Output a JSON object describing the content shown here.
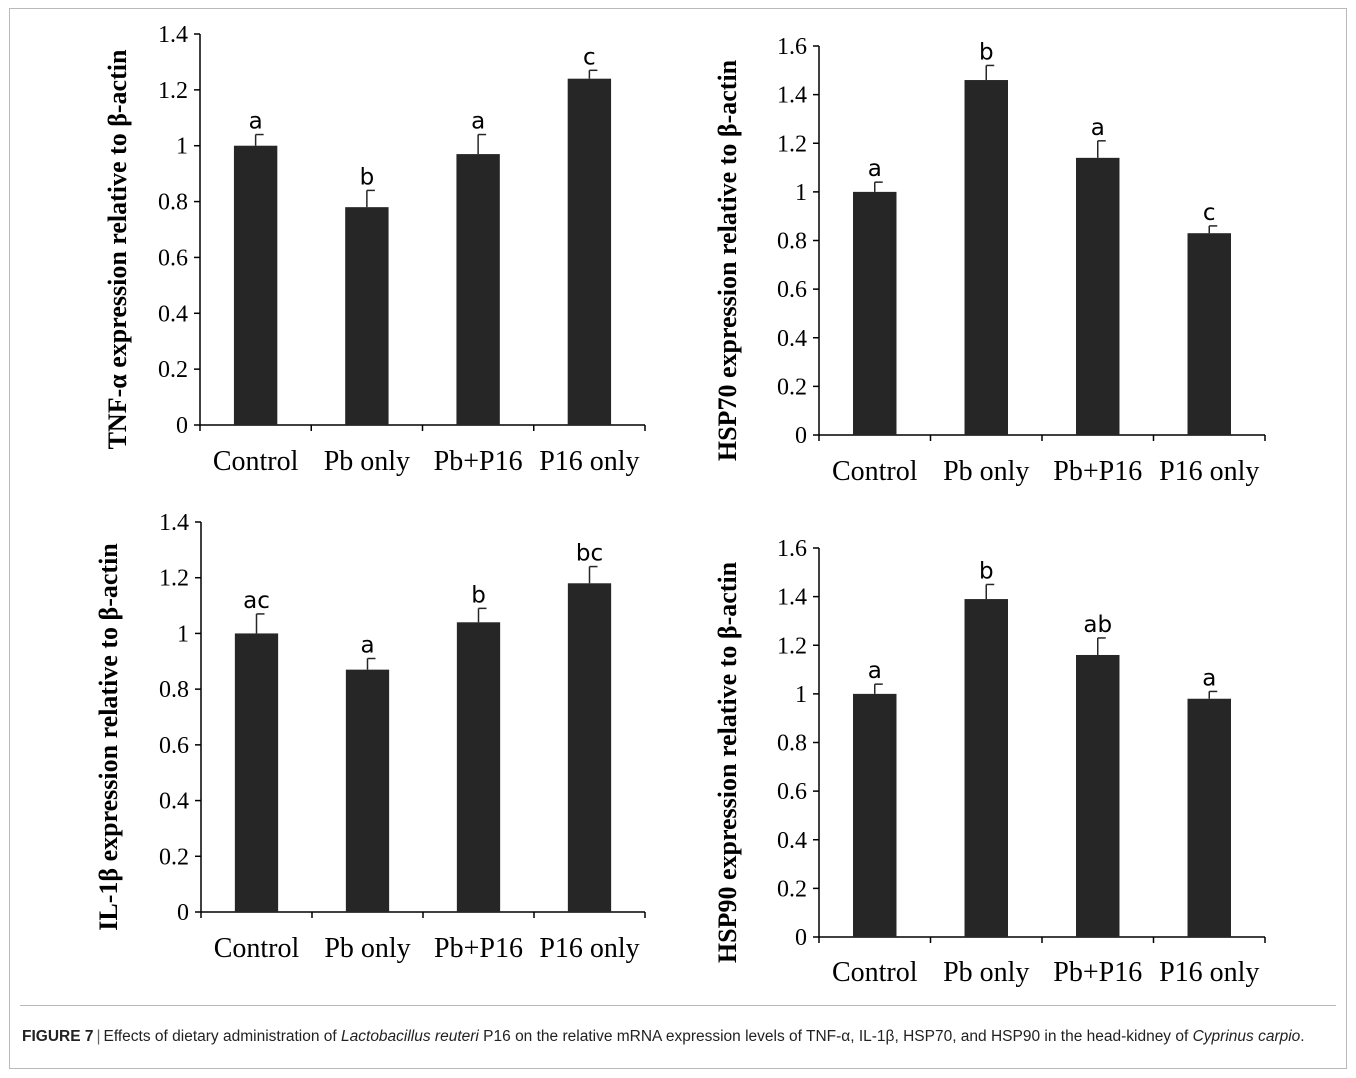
{
  "figure": {
    "caption": {
      "label": "FIGURE 7",
      "separator": "|",
      "text1": "Effects of dietary administration of ",
      "italic1": "Lactobacillus reuteri",
      "text2": " P16 on the relative mRNA expression levels of TNF-α, IL-1β, HSP70, and HSP90 in the head-kidney of ",
      "italic2": "Cyprinus carpio",
      "text3": "."
    }
  },
  "colors": {
    "bar": "#262626",
    "axis": "#000000",
    "frame": "#b9b9b9"
  },
  "chart_data": [
    {
      "type": "bar",
      "ylabel": "TNF-α expression relative to β-actin",
      "categories": [
        "Control",
        "Pb only",
        "Pb+P16",
        "P16 only"
      ],
      "values": [
        1.0,
        0.78,
        0.97,
        1.24
      ],
      "errors": [
        0.04,
        0.06,
        0.07,
        0.03
      ],
      "letters": [
        "a",
        "b",
        "a",
        "c"
      ],
      "ylim": [
        0,
        1.4
      ],
      "yticks": [
        0,
        0.2,
        0.4,
        0.6,
        0.8,
        1,
        1.2,
        1.4
      ],
      "yticklabels": [
        "0",
        "0.2",
        "0.4",
        "0.6",
        "0.8",
        "1",
        "1.2",
        "1.4"
      ]
    },
    {
      "type": "bar",
      "ylabel": "HSP70 expression relative to β-actin",
      "categories": [
        "Control",
        "Pb only",
        "Pb+P16",
        "P16 only"
      ],
      "values": [
        1.0,
        1.46,
        1.14,
        0.83
      ],
      "errors": [
        0.04,
        0.06,
        0.07,
        0.03
      ],
      "letters": [
        "a",
        "b",
        "a",
        "c"
      ],
      "ylim": [
        0,
        1.6
      ],
      "yticks": [
        0,
        0.2,
        0.4,
        0.6,
        0.8,
        1,
        1.2,
        1.4,
        1.6
      ],
      "yticklabels": [
        "0",
        "0.2",
        "0.4",
        "0.6",
        "0.8",
        "1",
        "1.2",
        "1.4",
        "1.6"
      ]
    },
    {
      "type": "bar",
      "ylabel": "IL-1β expression relative to β-actin",
      "categories": [
        "Control",
        "Pb only",
        "Pb+P16",
        "P16 only"
      ],
      "values": [
        1.0,
        0.87,
        1.04,
        1.18
      ],
      "errors": [
        0.07,
        0.04,
        0.05,
        0.06
      ],
      "letters": [
        "ac",
        "a",
        "b",
        "bc"
      ],
      "ylim": [
        0,
        1.4
      ],
      "yticks": [
        0,
        0.2,
        0.4,
        0.6,
        0.8,
        1,
        1.2,
        1.4
      ],
      "yticklabels": [
        "0",
        "0.2",
        "0.4",
        "0.6",
        "0.8",
        "1",
        "1.2",
        "1.4"
      ]
    },
    {
      "type": "bar",
      "ylabel": "HSP90 expression relative to β-actin",
      "categories": [
        "Control",
        "Pb only",
        "Pb+P16",
        "P16 only"
      ],
      "values": [
        1.0,
        1.39,
        1.16,
        0.98
      ],
      "errors": [
        0.04,
        0.06,
        0.07,
        0.03
      ],
      "letters": [
        "a",
        "b",
        "ab",
        "a"
      ],
      "ylim": [
        0,
        1.6
      ],
      "yticks": [
        0,
        0.2,
        0.4,
        0.6,
        0.8,
        1,
        1.2,
        1.4,
        1.6
      ],
      "yticklabels": [
        "0",
        "0.2",
        "0.4",
        "0.6",
        "0.8",
        "1",
        "1.2",
        "1.4",
        "1.6"
      ]
    }
  ]
}
